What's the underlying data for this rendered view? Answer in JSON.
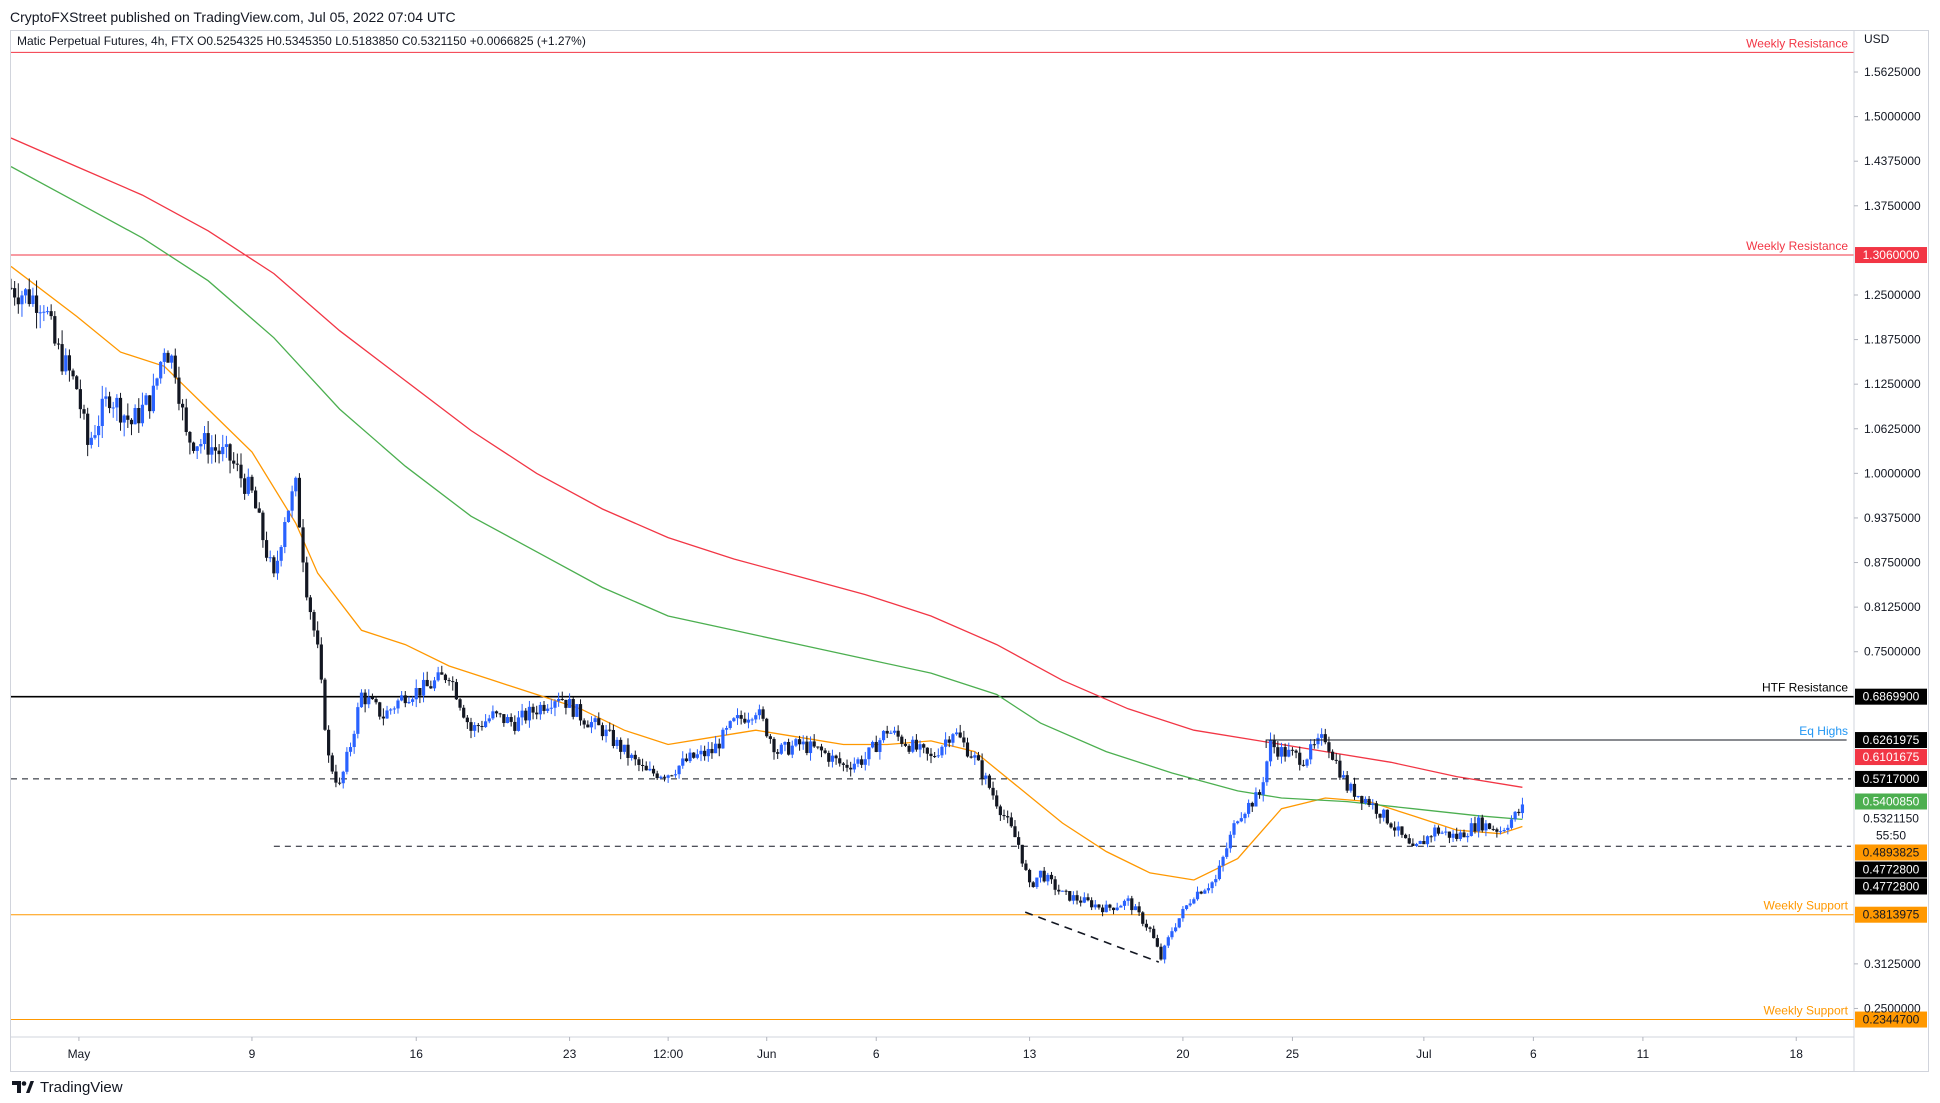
{
  "publisher_line": "CryptoFXStreet published on TradingView.com, Jul 05, 2022 07:04 UTC",
  "footer": {
    "brand": "TradingView",
    "logo_icon": "tradingview-logo-icon"
  },
  "colors": {
    "candle_up": "#2962ff",
    "candle_down": "#131722",
    "ema_orange": "#ff9800",
    "ema_green": "#4caf50",
    "ema_red": "#f23645",
    "weekly_resistance": "#f23645",
    "weekly_support": "#ff9800",
    "htf_resistance": "#000000",
    "eq_highs": "#2196f3"
  },
  "chart_data": {
    "type": "candlestick",
    "title": "Matic Perpetual Futures, 4h, FTX",
    "ohlc": {
      "open": "O0.5254325",
      "high": "H0.5345350",
      "low": "L0.5183850",
      "close": "C0.5321150",
      "change": "+0.0066825 (+1.27%)"
    },
    "currency": "USD",
    "ylim": [
      0.21,
      1.62
    ],
    "y_ticks": [
      "1.5625000",
      "1.5000000",
      "1.4375000",
      "1.3750000",
      "1.2500000",
      "1.1875000",
      "1.1250000",
      "1.0625000",
      "1.0000000",
      "0.9375000",
      "0.8750000",
      "0.8125000",
      "0.7500000",
      "0.3125000",
      "0.2500000"
    ],
    "y_tick_values": [
      1.5625,
      1.5,
      1.4375,
      1.375,
      1.25,
      1.1875,
      1.125,
      1.0625,
      1.0,
      0.9375,
      0.875,
      0.8125,
      0.75,
      0.3125,
      0.25
    ],
    "x_range": [
      0,
      84
    ],
    "x_ticks": [
      {
        "label": "May",
        "x": 3.1
      },
      {
        "label": "9",
        "x": 11.0
      },
      {
        "label": "16",
        "x": 18.5
      },
      {
        "label": "23",
        "x": 25.5
      },
      {
        "label": "12:00",
        "x": 30.0
      },
      {
        "label": "Jun",
        "x": 34.5
      },
      {
        "label": "6",
        "x": 39.5
      },
      {
        "label": "13",
        "x": 46.5
      },
      {
        "label": "20",
        "x": 53.5
      },
      {
        "label": "25",
        "x": 58.5
      },
      {
        "label": "Jul",
        "x": 64.5
      },
      {
        "label": "6",
        "x": 69.5
      },
      {
        "label": "11",
        "x": 74.5
      },
      {
        "label": "18",
        "x": 81.5
      }
    ],
    "price_path": [
      [
        0,
        1.26
      ],
      [
        1.5,
        1.24
      ],
      [
        2,
        1.18
      ],
      [
        3,
        1.12
      ],
      [
        3.5,
        1.04
      ],
      [
        4.5,
        1.11
      ],
      [
        5.5,
        1.07
      ],
      [
        6.5,
        1.11
      ],
      [
        7,
        1.18
      ],
      [
        7.5,
        1.15
      ],
      [
        8,
        1.05
      ],
      [
        9,
        1.04
      ],
      [
        10,
        1.02
      ],
      [
        11,
        0.97
      ],
      [
        12,
        0.85
      ],
      [
        12.5,
        0.94
      ],
      [
        13,
        0.98
      ],
      [
        13.5,
        0.84
      ],
      [
        14,
        0.75
      ],
      [
        14.5,
        0.6
      ],
      [
        15,
        0.56
      ],
      [
        15.5,
        0.62
      ],
      [
        16,
        0.69
      ],
      [
        17,
        0.66
      ],
      [
        18,
        0.69
      ],
      [
        19,
        0.7
      ],
      [
        20,
        0.72
      ],
      [
        21,
        0.64
      ],
      [
        22,
        0.66
      ],
      [
        23,
        0.65
      ],
      [
        24,
        0.67
      ],
      [
        25,
        0.69
      ],
      [
        26,
        0.66
      ],
      [
        27,
        0.64
      ],
      [
        28,
        0.61
      ],
      [
        29,
        0.58
      ],
      [
        30,
        0.58
      ],
      [
        31,
        0.6
      ],
      [
        32,
        0.61
      ],
      [
        33,
        0.65
      ],
      [
        34,
        0.67
      ],
      [
        35,
        0.61
      ],
      [
        36,
        0.62
      ],
      [
        37,
        0.61
      ],
      [
        38,
        0.59
      ],
      [
        39,
        0.6
      ],
      [
        40,
        0.64
      ],
      [
        41,
        0.62
      ],
      [
        42,
        0.6
      ],
      [
        43,
        0.64
      ],
      [
        44,
        0.6
      ],
      [
        45,
        0.54
      ],
      [
        46,
        0.48
      ],
      [
        46.5,
        0.42
      ],
      [
        47,
        0.44
      ],
      [
        48,
        0.41
      ],
      [
        49,
        0.4
      ],
      [
        50,
        0.39
      ],
      [
        51,
        0.4
      ],
      [
        52,
        0.36
      ],
      [
        52.5,
        0.32
      ],
      [
        53,
        0.36
      ],
      [
        54,
        0.41
      ],
      [
        55,
        0.43
      ],
      [
        56,
        0.52
      ],
      [
        57,
        0.55
      ],
      [
        57.5,
        0.62
      ],
      [
        58,
        0.61
      ],
      [
        59,
        0.6
      ],
      [
        60,
        0.63
      ],
      [
        61,
        0.56
      ],
      [
        62,
        0.54
      ],
      [
        63,
        0.51
      ],
      [
        64,
        0.47
      ],
      [
        65,
        0.5
      ],
      [
        66,
        0.49
      ],
      [
        67,
        0.51
      ],
      [
        68,
        0.5
      ],
      [
        69,
        0.53
      ]
    ],
    "series": [
      {
        "name": "",
        "color_key": "ema_orange",
        "points": [
          [
            0,
            1.29
          ],
          [
            3,
            1.22
          ],
          [
            5,
            1.17
          ],
          [
            7,
            1.15
          ],
          [
            9,
            1.09
          ],
          [
            11,
            1.03
          ],
          [
            13,
            0.93
          ],
          [
            14,
            0.86
          ],
          [
            16,
            0.78
          ],
          [
            18,
            0.76
          ],
          [
            20,
            0.73
          ],
          [
            22,
            0.71
          ],
          [
            24,
            0.69
          ],
          [
            26,
            0.67
          ],
          [
            28,
            0.64
          ],
          [
            30,
            0.62
          ],
          [
            32,
            0.63
          ],
          [
            34,
            0.64
          ],
          [
            36,
            0.63
          ],
          [
            38,
            0.62
          ],
          [
            40,
            0.62
          ],
          [
            42,
            0.625
          ],
          [
            44,
            0.61
          ],
          [
            46,
            0.56
          ],
          [
            48,
            0.51
          ],
          [
            50,
            0.47
          ],
          [
            52,
            0.44
          ],
          [
            54,
            0.43
          ],
          [
            56,
            0.46
          ],
          [
            58,
            0.53
          ],
          [
            60,
            0.545
          ],
          [
            62,
            0.54
          ],
          [
            64,
            0.52
          ],
          [
            66,
            0.5
          ],
          [
            68,
            0.495
          ],
          [
            69,
            0.505
          ]
        ]
      },
      {
        "name": "",
        "color_key": "ema_green",
        "points": [
          [
            0,
            1.43
          ],
          [
            3,
            1.38
          ],
          [
            6,
            1.33
          ],
          [
            9,
            1.27
          ],
          [
            12,
            1.19
          ],
          [
            15,
            1.09
          ],
          [
            18,
            1.01
          ],
          [
            21,
            0.94
          ],
          [
            24,
            0.89
          ],
          [
            27,
            0.84
          ],
          [
            30,
            0.8
          ],
          [
            33,
            0.78
          ],
          [
            36,
            0.76
          ],
          [
            39,
            0.74
          ],
          [
            42,
            0.72
          ],
          [
            45,
            0.69
          ],
          [
            47,
            0.65
          ],
          [
            50,
            0.61
          ],
          [
            53,
            0.58
          ],
          [
            56,
            0.555
          ],
          [
            58,
            0.545
          ],
          [
            61,
            0.54
          ],
          [
            64,
            0.53
          ],
          [
            67,
            0.52
          ],
          [
            69,
            0.515
          ]
        ]
      },
      {
        "name": "",
        "color_key": "ema_red",
        "points": [
          [
            0,
            1.47
          ],
          [
            3,
            1.43
          ],
          [
            6,
            1.39
          ],
          [
            9,
            1.34
          ],
          [
            12,
            1.28
          ],
          [
            15,
            1.2
          ],
          [
            18,
            1.13
          ],
          [
            21,
            1.06
          ],
          [
            24,
            1.0
          ],
          [
            27,
            0.95
          ],
          [
            30,
            0.91
          ],
          [
            33,
            0.88
          ],
          [
            36,
            0.855
          ],
          [
            39,
            0.83
          ],
          [
            42,
            0.8
          ],
          [
            45,
            0.76
          ],
          [
            48,
            0.71
          ],
          [
            51,
            0.67
          ],
          [
            54,
            0.64
          ],
          [
            57,
            0.625
          ],
          [
            60,
            0.61
          ],
          [
            63,
            0.595
          ],
          [
            66,
            0.575
          ],
          [
            69,
            0.56
          ]
        ]
      }
    ],
    "levels": [
      {
        "label": "Weekly Resistance",
        "value": 1.59,
        "price_tag": "",
        "color_key": "weekly_resistance"
      },
      {
        "label": "Weekly Resistance",
        "value": 1.306,
        "price_tag": "1.3060000",
        "color_key": "weekly_resistance"
      },
      {
        "label": "HTF Resistance",
        "value": 0.68699,
        "price_tag": "0.6869900",
        "color_key": "htf_resistance"
      },
      {
        "label": "Weekly Support",
        "value": 0.3813975,
        "price_tag": "0.3813975",
        "color_key": "weekly_support"
      },
      {
        "label": "Weekly Support",
        "value": 0.23447,
        "price_tag": "0.2344700",
        "color_key": "weekly_support"
      }
    ],
    "eq_highs": {
      "label": "Eq Highs",
      "value": 0.6261975,
      "x_from": 57.3,
      "x_to": 83.8
    },
    "dashed_levels": [
      {
        "value": 0.5717,
        "x_from": 0,
        "x_to": 84
      },
      {
        "value": 0.47728,
        "x_from": 12.0,
        "x_to": 84
      }
    ],
    "trendline": {
      "from": [
        46.3,
        0.385
      ],
      "to": [
        52.4,
        0.315
      ]
    },
    "right_tags": [
      {
        "text": "0.6261975",
        "value": 0.6261975,
        "bg": "#000000",
        "fg": "#ffffff"
      },
      {
        "text": "0.6101675",
        "value": 0.6101675,
        "bg": "#f23645",
        "fg": "#ffffff"
      },
      {
        "text": "0.5717000",
        "value": 0.5717,
        "bg": "#000000",
        "fg": "#ffffff"
      },
      {
        "text": "0.5400850",
        "value": 0.540085,
        "bg": "#4caf50",
        "fg": "#ffffff"
      },
      {
        "text": "0.5321150",
        "value": 0.532115,
        "bg": "#ffffff",
        "fg": "#131722"
      },
      {
        "text": "55:50",
        "value": 0.518,
        "bg": "#ffffff",
        "fg": "#131722"
      },
      {
        "text": "0.4893825",
        "value": 0.4893825,
        "bg": "#ff9800",
        "fg": "#131722"
      },
      {
        "text": "0.4772800",
        "value": 0.47728,
        "bg": "#000000",
        "fg": "#ffffff",
        "slot_offset": 0.5
      },
      {
        "text": "0.4772800",
        "value": 0.47728,
        "bg": "#000000",
        "fg": "#ffffff",
        "slot_offset": 1.5
      }
    ]
  }
}
